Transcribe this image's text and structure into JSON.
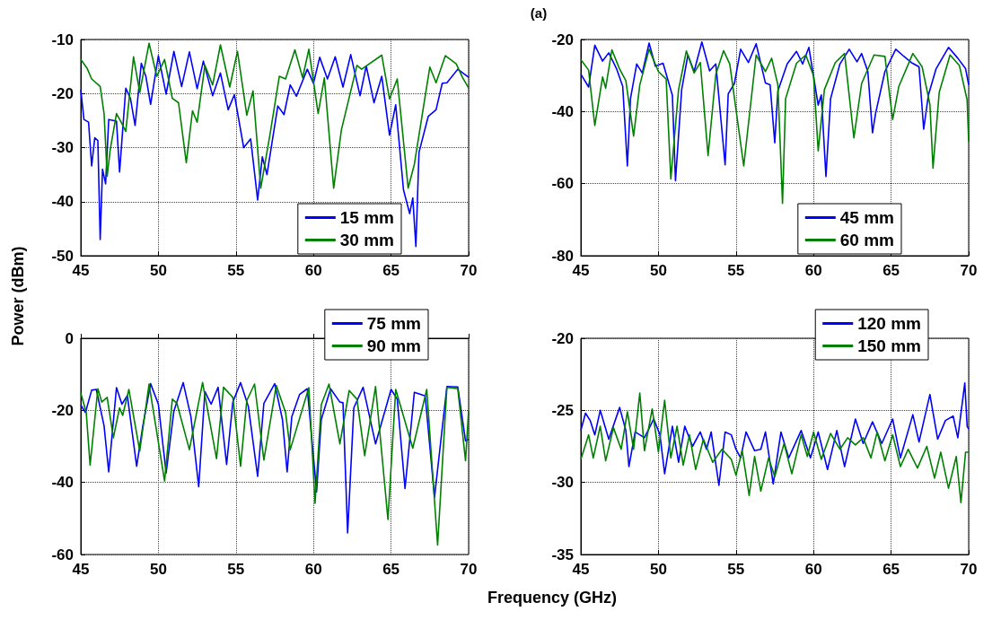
{
  "chart_data": [
    {
      "type": "line",
      "ylabel": "Power (dBm)",
      "xlim": [
        45,
        70
      ],
      "xticks": [
        45,
        50,
        55,
        60,
        65,
        70
      ],
      "ylim": [
        -50,
        -10
      ],
      "yticks": [
        -50,
        -40,
        -30,
        -20,
        -10
      ],
      "grid": true,
      "legend": "bottom right",
      "series": [
        {
          "name": "15 mm",
          "color": "#0000ff",
          "x": [
            45,
            45.2,
            45.5,
            45.7,
            45.9,
            46.1,
            46.25,
            46.4,
            46.6,
            46.8,
            47.3,
            47.5,
            47.9,
            48.2,
            48.5,
            48.9,
            49.2,
            49.5,
            50,
            50.5,
            51,
            51.5,
            52,
            52.5,
            52.9,
            53.5,
            54,
            54.5,
            54.9,
            55.5,
            55.95,
            56.4,
            56.7,
            57,
            57.7,
            58.1,
            58.5,
            58.9,
            59.6,
            60,
            60.4,
            60.9,
            61.4,
            61.9,
            62.4,
            63,
            63.4,
            63.9,
            64.4,
            64.9,
            65.3,
            65.8,
            66.2,
            66.4,
            66.6,
            66.8,
            67.4,
            67.9,
            68.3,
            68.6,
            69.3,
            70
          ],
          "values": [
            -19.3,
            -24.8,
            -25.3,
            -33.4,
            -28.2,
            -28.7,
            -47,
            -34,
            -36.7,
            -24.8,
            -25.1,
            -34.5,
            -19,
            -20.9,
            -25.9,
            -14.4,
            -16.9,
            -22,
            -13,
            -20.1,
            -12.2,
            -18.7,
            -12.3,
            -19.1,
            -14,
            -20.4,
            -16.2,
            -23,
            -20.2,
            -30,
            -28.4,
            -39.7,
            -31.7,
            -35,
            -22.3,
            -23.9,
            -18.4,
            -20.5,
            -15.5,
            -18.1,
            -13.3,
            -17.3,
            -13.2,
            -18.8,
            -12.8,
            -20.4,
            -14.9,
            -21.7,
            -16.8,
            -27.7,
            -22.1,
            -37.8,
            -42.2,
            -39.3,
            -48.3,
            -30.9,
            -24.2,
            -23,
            -18.1,
            -18,
            -15.5,
            -17
          ]
        },
        {
          "name": "30 mm",
          "color": "#008000",
          "x": [
            45,
            45.4,
            45.7,
            46.25,
            46.5,
            46.7,
            46.9,
            47.3,
            47.6,
            47.9,
            48.4,
            48.8,
            49.4,
            49.9,
            50.4,
            50.9,
            51.3,
            51.8,
            52.2,
            52.5,
            53,
            53.5,
            54,
            54.6,
            55.1,
            55.7,
            56.1,
            56.6,
            57.2,
            57.8,
            58.2,
            58.8,
            59.3,
            59.7,
            60.3,
            60.7,
            61.3,
            61.8,
            62.8,
            63.1,
            64.4,
            64.9,
            65.4,
            66.1,
            66.5,
            67.5,
            67.9,
            68.5,
            69.2,
            69.6,
            70
          ],
          "values": [
            -13.7,
            -15.3,
            -17.3,
            -18.7,
            -23.7,
            -35.3,
            -30.3,
            -23.7,
            -25.3,
            -27,
            -13.2,
            -19.8,
            -10.7,
            -16.8,
            -13.7,
            -20.9,
            -21.7,
            -32.8,
            -23.2,
            -25.3,
            -14.8,
            -18.4,
            -11,
            -18.8,
            -12.2,
            -24,
            -19.5,
            -37.5,
            -27.5,
            -16.8,
            -17.3,
            -11.9,
            -17.1,
            -11.8,
            -23.7,
            -17.1,
            -37.5,
            -26.7,
            -14.8,
            -15.5,
            -12.9,
            -21,
            -17.3,
            -37.5,
            -33.1,
            -15.1,
            -18,
            -13,
            -14.5,
            -17,
            -19
          ]
        }
      ]
    },
    {
      "type": "line",
      "title": "(a)",
      "xlim": [
        45,
        70
      ],
      "xticks": [
        45,
        50,
        55,
        60,
        65,
        70
      ],
      "ylim": [
        -80,
        -20
      ],
      "yticks": [
        -80,
        -60,
        -40,
        -20
      ],
      "grid": true,
      "legend": "bottom right",
      "series": [
        {
          "name": "45 mm",
          "color": "#0000ff",
          "x": [
            45,
            45.5,
            45.9,
            46.4,
            46.8,
            47.3,
            47.7,
            48,
            48.2,
            48.6,
            48.96,
            49.4,
            49.8,
            50.3,
            50.9,
            51.1,
            51.5,
            51.9,
            52.3,
            52.8,
            53.3,
            53.7,
            54.3,
            54.5,
            54.9,
            55.3,
            55.8,
            56.3,
            56.9,
            57.2,
            57.5,
            57.7,
            58.3,
            58.9,
            59.3,
            59.7,
            60.3,
            60.5,
            60.8,
            61.1,
            61.7,
            62.3,
            62.8,
            63.1,
            63.5,
            63.8,
            64,
            64.6,
            65.3,
            65.8,
            66.3,
            66.8,
            67.1,
            67.4,
            67.9,
            68.7,
            69.3,
            69.8,
            70
          ],
          "values": [
            -29.6,
            -33.2,
            -21.6,
            -26,
            -23.7,
            -28.1,
            -33,
            -55.1,
            -36.4,
            -26.8,
            -29.3,
            -21,
            -27.4,
            -26.6,
            -35.5,
            -59.2,
            -33.9,
            -24.3,
            -28.9,
            -20.7,
            -28.7,
            -26.8,
            -54.8,
            -35.1,
            -32.2,
            -22.7,
            -26.4,
            -21.2,
            -32.1,
            -32.6,
            -48.7,
            -34.3,
            -26.8,
            -23.3,
            -26.8,
            -22.2,
            -38.2,
            -35.4,
            -58,
            -36.4,
            -26.8,
            -22.7,
            -26.2,
            -23.9,
            -28.9,
            -45.9,
            -40.5,
            -28.9,
            -22.7,
            -24.6,
            -26.4,
            -27.6,
            -44.9,
            -35.5,
            -28.1,
            -22.2,
            -25.2,
            -28.1,
            -32.6
          ]
        },
        {
          "name": "60 mm",
          "color": "#008000",
          "x": [
            45,
            45.5,
            45.9,
            46.4,
            46.6,
            47,
            47.5,
            47.9,
            48.4,
            48.8,
            49.4,
            50,
            50.5,
            50.8,
            51.3,
            51.8,
            52.3,
            52.7,
            53.2,
            53.7,
            54.2,
            54.6,
            55.5,
            56.3,
            56.9,
            57.3,
            57.7,
            58,
            58.2,
            58.9,
            59.5,
            60,
            60.3,
            60.7,
            61.4,
            62,
            62.6,
            63.1,
            63.9,
            64.6,
            65.1,
            65.5,
            66.4,
            67,
            67.5,
            67.7,
            68.1,
            68.8,
            69.4,
            69.9,
            70
          ],
          "values": [
            -25.6,
            -28.5,
            -43.9,
            -30.4,
            -33.5,
            -22.9,
            -28.2,
            -31.4,
            -46.8,
            -32.6,
            -22.7,
            -28.9,
            -31,
            -58.7,
            -33.9,
            -23.2,
            -29.3,
            -26.4,
            -52.2,
            -29.7,
            -23.1,
            -26.8,
            -55.1,
            -24.3,
            -28.9,
            -25.2,
            -32.6,
            -65.5,
            -36.4,
            -26.6,
            -24.3,
            -30.1,
            -50.9,
            -33.9,
            -26.4,
            -23.9,
            -47.3,
            -32.2,
            -24.3,
            -24.7,
            -42.2,
            -33,
            -23.9,
            -27.6,
            -38,
            -55.7,
            -34.7,
            -24.3,
            -27.2,
            -36.8,
            -48.4
          ]
        }
      ]
    },
    {
      "type": "line",
      "xlabel": "Frequency (GHz)",
      "xlim": [
        45,
        70
      ],
      "xticks": [
        45,
        50,
        55,
        60,
        65,
        70
      ],
      "ylim": [
        -60,
        0
      ],
      "yticks": [
        -60,
        -40,
        -20,
        0
      ],
      "grid": true,
      "legend": "top right",
      "series": [
        {
          "name": "75 mm",
          "color": "#0000ff",
          "x": [
            45,
            45.3,
            45.7,
            46,
            46.5,
            46.8,
            47.3,
            47.65,
            48,
            48.6,
            49,
            49.5,
            50,
            50.5,
            51,
            51.6,
            52.1,
            52.6,
            53,
            53.4,
            53.85,
            54.4,
            54.8,
            55.3,
            55.8,
            56.4,
            56.8,
            57.5,
            58,
            58.3,
            58.6,
            59.1,
            59.6,
            60.2,
            60.5,
            61.1,
            61.7,
            61.9,
            62.2,
            62.6,
            63.2,
            64,
            65,
            65.4,
            65.9,
            66.5,
            67.2,
            67.8,
            68.6,
            69.3,
            69.8,
            70
          ],
          "values": [
            -18.5,
            -20.6,
            -14.4,
            -14.2,
            -24.3,
            -37.1,
            -13.7,
            -18.3,
            -15.9,
            -35.5,
            -24.3,
            -12.6,
            -18.3,
            -37.4,
            -20.2,
            -12.3,
            -21.8,
            -41.2,
            -14.8,
            -18.3,
            -13.6,
            -35,
            -17.7,
            -12.3,
            -18.9,
            -38.3,
            -18.1,
            -12.6,
            -22.6,
            -37.1,
            -21.8,
            -15.6,
            -14,
            -42.6,
            -22.6,
            -14,
            -17.7,
            -17.9,
            -54,
            -19.3,
            -13.6,
            -29.3,
            -14.2,
            -16.9,
            -41.7,
            -15,
            -16,
            -44.1,
            -13.4,
            -13.5,
            -28.5,
            -28
          ]
        },
        {
          "name": "90 mm",
          "color": "#008000",
          "x": [
            45,
            45.35,
            45.6,
            46.1,
            46.35,
            46.7,
            47.1,
            47.5,
            47.7,
            48.1,
            48.8,
            49.4,
            50.4,
            50.9,
            51.2,
            52,
            52.85,
            53.75,
            54.2,
            54.8,
            55.3,
            55.7,
            56.2,
            56.8,
            57.6,
            58.2,
            58.5,
            59.7,
            60.1,
            60.5,
            61,
            61.7,
            62.3,
            62.8,
            63.3,
            64,
            64.8,
            65.3,
            66.4,
            67.3,
            68,
            68.6,
            69.3,
            69.8,
            70
          ],
          "values": [
            -15.2,
            -20.6,
            -35.2,
            -14,
            -17.7,
            -16.4,
            -27.6,
            -19.3,
            -21.4,
            -14.2,
            -31.3,
            -12.7,
            -39.6,
            -16.9,
            -18.1,
            -30.9,
            -12.3,
            -33.4,
            -13.6,
            -16.4,
            -35.5,
            -17.3,
            -12.7,
            -33.8,
            -13.1,
            -20.6,
            -30.9,
            -13.7,
            -45.8,
            -18.5,
            -12.7,
            -29.3,
            -14.5,
            -16.9,
            -32.6,
            -13.4,
            -50.3,
            -14.2,
            -30.5,
            -14.2,
            -57.4,
            -13.6,
            -14,
            -34,
            -20
          ]
        }
      ]
    },
    {
      "type": "line",
      "xlim": [
        45,
        70
      ],
      "xticks": [
        45,
        50,
        55,
        60,
        65,
        70
      ],
      "ylim": [
        -35,
        -20
      ],
      "yticks": [
        -35,
        -30,
        -25,
        -20
      ],
      "grid": true,
      "legend": "top right",
      "series": [
        {
          "name": "120 mm",
          "color": "#0000ff",
          "x": [
            45,
            45.3,
            45.6,
            45.9,
            46.25,
            46.8,
            47.5,
            47.9,
            48.1,
            48.5,
            49.1,
            49.7,
            50.1,
            50.4,
            50.9,
            51.3,
            51.7,
            52.2,
            52.7,
            53.1,
            53.4,
            53.9,
            54.3,
            54.7,
            55,
            55.3,
            55.65,
            56.2,
            56.6,
            56.9,
            57.4,
            57.9,
            58.4,
            59.2,
            59.8,
            60.3,
            60.9,
            61.5,
            62,
            62.7,
            63.2,
            63.8,
            64.4,
            65.1,
            65.6,
            66.4,
            66.8,
            67.5,
            68,
            68.5,
            69,
            69.3,
            69.75,
            69.9,
            70
          ],
          "values": [
            -26.4,
            -25.2,
            -25.7,
            -26.7,
            -25,
            -27,
            -24.8,
            -26.4,
            -28.9,
            -26.5,
            -26.9,
            -25.6,
            -26.7,
            -29.4,
            -26.1,
            -28.6,
            -26.1,
            -27.5,
            -26.5,
            -27.7,
            -26.5,
            -30.2,
            -26.5,
            -26.7,
            -27.7,
            -28.3,
            -26.5,
            -27.8,
            -27.7,
            -26.5,
            -30.1,
            -26.5,
            -28.3,
            -26.4,
            -28.3,
            -26.5,
            -29.1,
            -26.4,
            -28.9,
            -25.6,
            -27.3,
            -25.8,
            -27.3,
            -25.6,
            -28.3,
            -25.3,
            -27.2,
            -23.9,
            -27,
            -25.7,
            -25.4,
            -26.9,
            -23.1,
            -26.1,
            -26.3
          ]
        },
        {
          "name": "150 mm",
          "color": "#008000",
          "x": [
            45,
            45.5,
            45.8,
            46.25,
            46.6,
            47.1,
            47.6,
            48,
            48.4,
            48.8,
            49.1,
            49.6,
            50,
            50.4,
            50.8,
            51.2,
            51.6,
            52,
            52.4,
            52.9,
            53.5,
            54.1,
            54.7,
            55,
            55.4,
            55.85,
            56.2,
            56.6,
            57.1,
            57.5,
            58.1,
            58.6,
            59.2,
            59.6,
            60,
            60.5,
            61.1,
            61.7,
            62.2,
            62.7,
            63.2,
            63.7,
            64.1,
            64.6,
            65.1,
            65.6,
            66.1,
            66.7,
            67.3,
            67.8,
            68.2,
            68.7,
            69.2,
            69.5,
            69.8,
            70
          ],
          "values": [
            -28.4,
            -26.7,
            -28.3,
            -26.1,
            -28.5,
            -26.2,
            -27.7,
            -25.1,
            -27.7,
            -23.8,
            -27.8,
            -24.9,
            -27.9,
            -24.3,
            -28.3,
            -26.1,
            -28.8,
            -26.7,
            -29.1,
            -27,
            -28.6,
            -27.7,
            -28.4,
            -29.5,
            -27.8,
            -30.9,
            -28.2,
            -30.6,
            -28.3,
            -29.6,
            -27.3,
            -29.4,
            -26.7,
            -28.2,
            -26.5,
            -28.4,
            -26.6,
            -27.7,
            -26.9,
            -27.4,
            -26.9,
            -28.3,
            -26.5,
            -28.5,
            -26.7,
            -28.9,
            -27.7,
            -29,
            -27.5,
            -29.7,
            -27.9,
            -30.4,
            -28.2,
            -31.4,
            -27.9,
            -27.9
          ]
        }
      ]
    }
  ]
}
